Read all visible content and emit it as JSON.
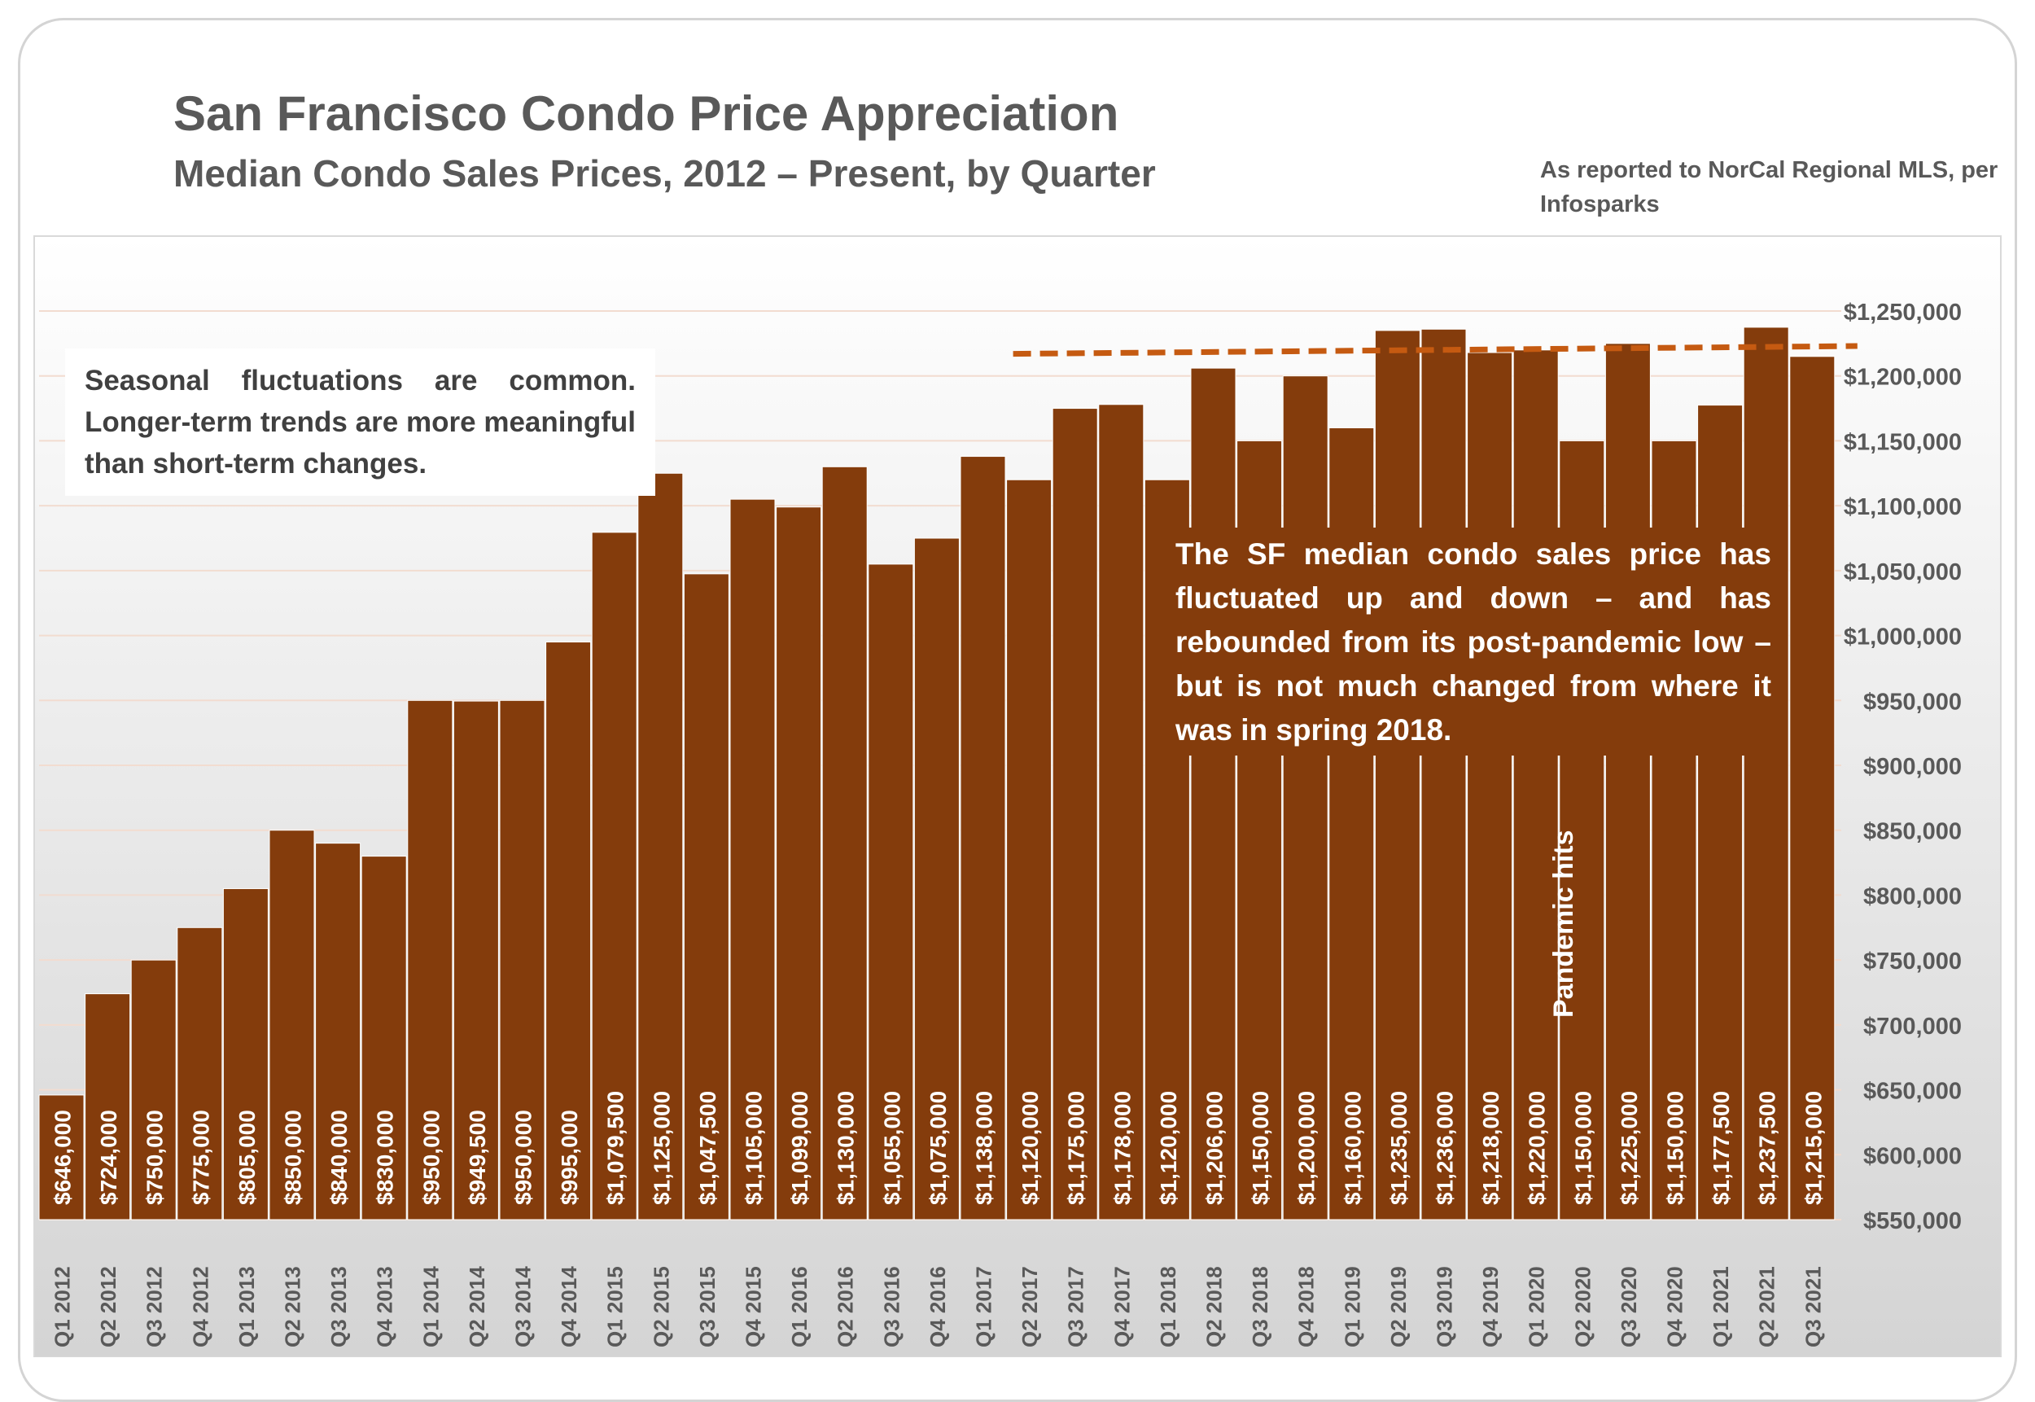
{
  "header": {
    "title": "San Francisco Condo Price Appreciation",
    "subtitle": "Median Condo Sales Prices, 2012 – Present, by Quarter",
    "source": "As reported to NorCal Regional MLS, per Infosparks"
  },
  "annotations": {
    "left_note": "Seasonal fluctuations are common. Longer-term trends are more meaningful than short-term changes.",
    "right_note": "The SF median condo sales price has fluctuated up and down – and has rebounded from its post-pandemic low – but is not much changed from where it was in spring 2018.",
    "pandemic_label": "Pandemic hits"
  },
  "colors": {
    "bar": "#843c0c",
    "trendline": "#c55a11",
    "text": "#595959",
    "grid": "#f2dcd0"
  },
  "chart_data": {
    "type": "bar",
    "title": "San Francisco Condo Price Appreciation",
    "categories": [
      "Q1 2012",
      "Q2 2012",
      "Q3 2012",
      "Q4 2012",
      "Q1 2013",
      "Q2 2013",
      "Q3 2013",
      "Q4 2013",
      "Q1 2014",
      "Q2 2014",
      "Q3 2014",
      "Q4 2014",
      "Q1 2015",
      "Q2 2015",
      "Q3 2015",
      "Q4 2015",
      "Q1 2016",
      "Q2 2016",
      "Q3 2016",
      "Q4 2016",
      "Q1 2017",
      "Q2 2017",
      "Q3 2017",
      "Q4 2017",
      "Q1 2018",
      "Q2 2018",
      "Q3 2018",
      "Q4 2018",
      "Q1 2019",
      "Q2 2019",
      "Q3 2019",
      "Q4 2019",
      "Q1 2020",
      "Q2 2020",
      "Q3 2020",
      "Q4 2020",
      "Q1 2021",
      "Q2 2021",
      "Q3 2021"
    ],
    "values": [
      646000,
      724000,
      750000,
      775000,
      805000,
      850000,
      840000,
      830000,
      950000,
      949500,
      950000,
      995000,
      1079500,
      1125000,
      1047500,
      1105000,
      1099000,
      1130000,
      1055000,
      1075000,
      1138000,
      1120000,
      1175000,
      1178000,
      1120000,
      1206000,
      1150000,
      1200000,
      1160000,
      1235000,
      1236000,
      1218000,
      1220000,
      1150000,
      1225000,
      1150000,
      1177500,
      1237500,
      1215000
    ],
    "data_labels": [
      "$646,000",
      "$724,000",
      "$750,000",
      "$775,000",
      "$805,000",
      "$850,000",
      "$840,000",
      "$830,000",
      "$950,000",
      "$949,500",
      "$950,000",
      "$995,000",
      "$1,079,500",
      "$1,125,000",
      "$1,047,500",
      "$1,105,000",
      "$1,099,000",
      "$1,130,000",
      "$1,055,000",
      "$1,075,000",
      "$1,138,000",
      "$1,120,000",
      "$1,175,000",
      "$1,178,000",
      "$1,120,000",
      "$1,206,000",
      "$1,150,000",
      "$1,200,000",
      "$1,160,000",
      "$1,235,000",
      "$1,236,000",
      "$1,218,000",
      "$1,220,000",
      "$1,150,000",
      "$1,225,000",
      "$1,150,000",
      "$1,177,500",
      "$1,237,500",
      "$1,215,000"
    ],
    "ylim": [
      550000,
      1250000
    ],
    "y_ticks": [
      550000,
      600000,
      650000,
      700000,
      750000,
      800000,
      850000,
      900000,
      950000,
      1000000,
      1050000,
      1100000,
      1150000,
      1200000,
      1250000
    ],
    "y_tick_labels": [
      "$550,000",
      "$600,000",
      "$650,000",
      "$700,000",
      "$750,000",
      "$800,000",
      "$850,000",
      "$900,000",
      "$950,000",
      "$1,000,000",
      "$1,050,000",
      "$1,100,000",
      "$1,150,000",
      "$1,200,000",
      "$1,250,000"
    ],
    "y_axis_side": "right",
    "grid": true,
    "trendline": {
      "style": "dashed",
      "from_category": "Q2 2017",
      "to_category": "Q3 2021",
      "y_start": 1217000,
      "y_end": 1223000
    }
  }
}
